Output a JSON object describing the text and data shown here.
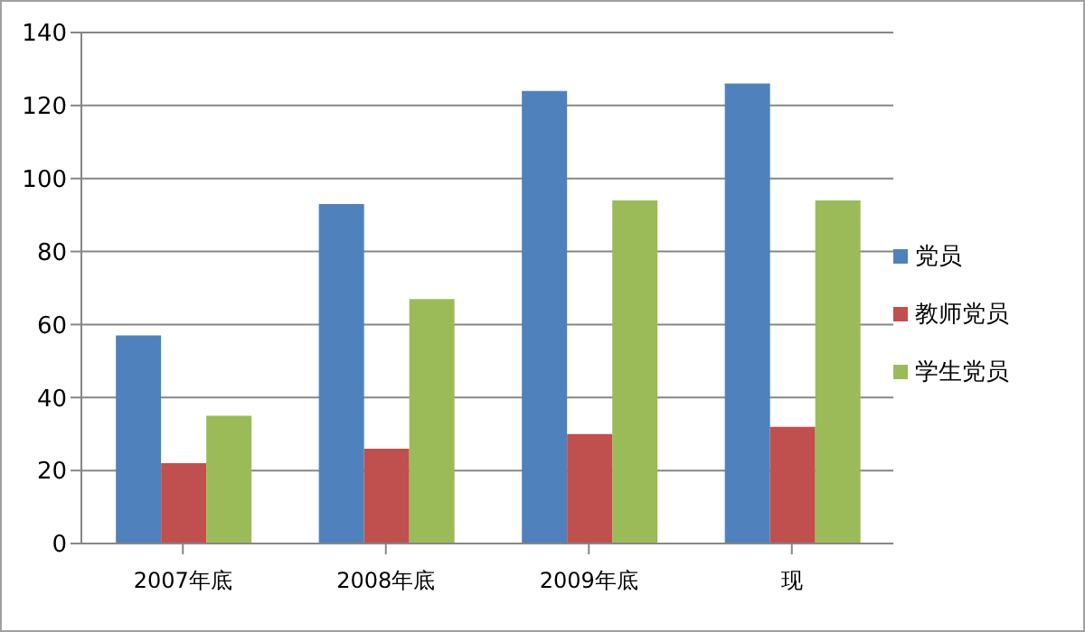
{
  "chart_data": {
    "type": "bar",
    "categories": [
      "2007年底",
      "2008年底",
      "2009年底",
      "现"
    ],
    "series": [
      {
        "name": "党员",
        "color": "#4f81bd",
        "values": [
          57,
          93,
          124,
          126
        ]
      },
      {
        "name": "教师党员",
        "color": "#c0504d",
        "values": [
          22,
          26,
          30,
          32
        ]
      },
      {
        "name": "学生党员",
        "color": "#9bbb59",
        "values": [
          35,
          67,
          94,
          94
        ]
      }
    ],
    "ylim": [
      0,
      140
    ],
    "yticks": [
      0,
      20,
      40,
      60,
      80,
      100,
      120,
      140
    ],
    "grid": "y",
    "legend": "right"
  }
}
